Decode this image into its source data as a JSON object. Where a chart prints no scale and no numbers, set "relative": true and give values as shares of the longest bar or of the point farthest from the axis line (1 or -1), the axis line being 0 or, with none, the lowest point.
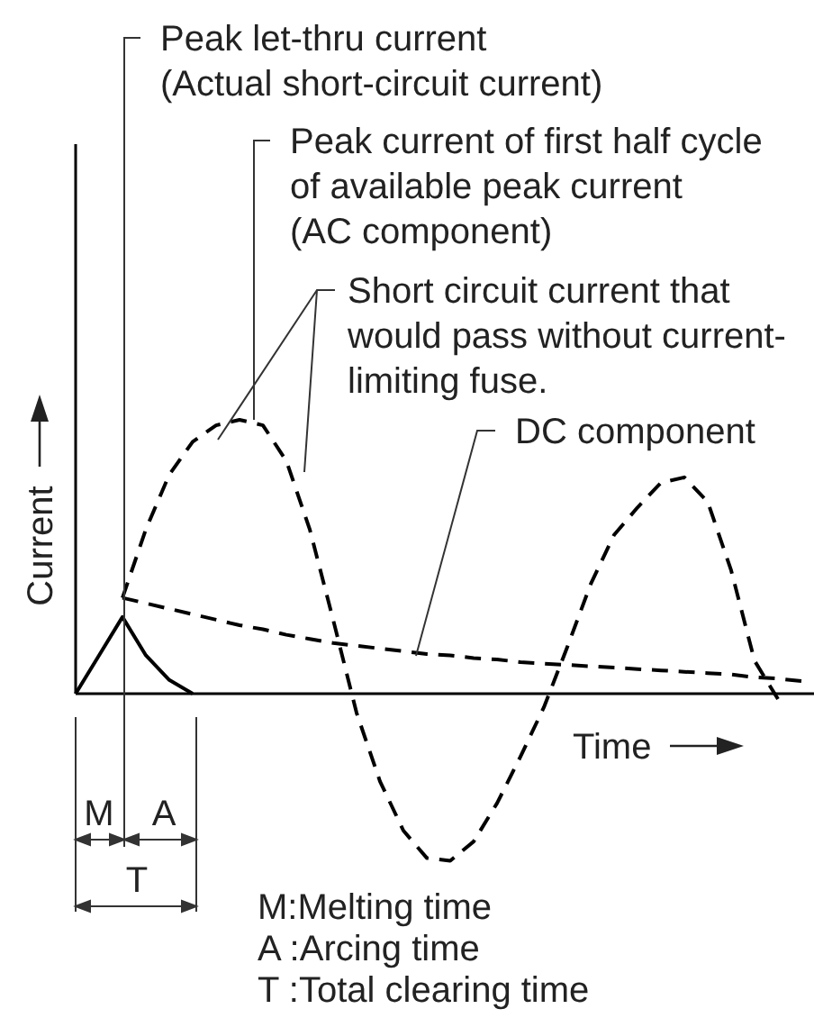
{
  "chart_data": {
    "type": "line",
    "relative": true,
    "xlabel": "Time",
    "ylabel": "Current",
    "categories": [
      null,
      null,
      null,
      null,
      null,
      null,
      null,
      null,
      null,
      null,
      null,
      null,
      null,
      null,
      null,
      null,
      null,
      null,
      null,
      null,
      null,
      null,
      null,
      null,
      null,
      null,
      null,
      null,
      null,
      null,
      null,
      null
    ],
    "series": [
      {
        "color": "#000000",
        "line_style": "solid",
        "values": [
          0,
          0.14,
          0.28,
          0.14,
          0.05,
          0,
          null,
          null,
          null,
          null,
          null,
          null,
          null,
          null,
          null,
          null,
          null,
          null,
          null,
          null,
          null,
          null,
          null,
          null,
          null,
          null,
          null,
          null,
          null,
          null,
          null,
          null
        ]
      },
      {
        "color": "#000000",
        "line_style": "dashed",
        "values": [
          null,
          null,
          0.35,
          0.6,
          0.8,
          0.92,
          0.98,
          1.0,
          0.98,
          0.85,
          0.6,
          0.27,
          -0.07,
          -0.32,
          -0.5,
          -0.6,
          -0.61,
          -0.54,
          -0.4,
          -0.23,
          -0.05,
          0.17,
          0.4,
          0.58,
          0.68,
          0.77,
          0.79,
          0.7,
          0.45,
          0.12,
          -0.02,
          null
        ]
      },
      {
        "color": "#000000",
        "line_style": "dashed",
        "values": [
          null,
          null,
          0.35,
          0.33,
          0.31,
          0.29,
          0.27,
          0.25,
          0.235,
          0.215,
          0.2,
          0.185,
          0.175,
          0.165,
          0.155,
          0.145,
          0.14,
          0.13,
          0.125,
          0.115,
          0.11,
          0.105,
          0.1,
          0.095,
          0.09,
          0.085,
          0.08,
          0.075,
          0.07,
          0.06,
          0.055,
          0.046
        ]
      }
    ],
    "annotations": [
      "Peak let-thru current\n(Actual short-circuit current)",
      "Peak current of first half cycle\nof available peak current\n(AC component)",
      "Short circuit current that\nwould pass without current-\nlimiting fuse.",
      "DC component",
      "M",
      "A",
      "T",
      "M:Melting time",
      "A :Arcing time",
      "T :Total clearing time"
    ]
  }
}
